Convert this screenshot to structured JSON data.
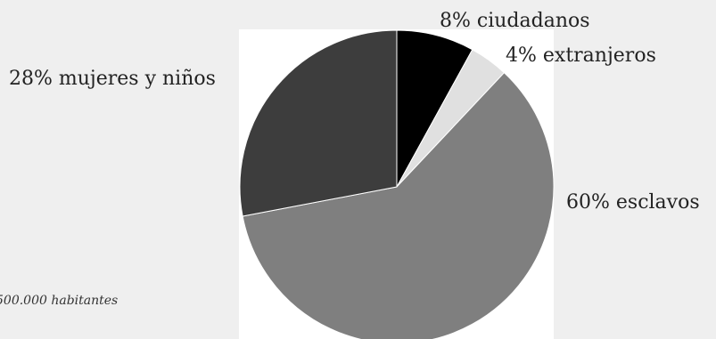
{
  "chart_data": {
    "type": "pie",
    "title": "",
    "slices": [
      {
        "label": "8% ciudadanos",
        "value": 8,
        "color": "#000000"
      },
      {
        "label": "4% extranjeros",
        "value": 4,
        "color": "#e0e0e0"
      },
      {
        "label": "60% esclavos",
        "value": 60,
        "color": "#7f7f7f"
      },
      {
        "label": "28% mujeres y niños",
        "value": 28,
        "color": "#3d3d3d"
      }
    ],
    "start_angle": "12 o'clock, clockwise",
    "legend": "labels placed beside the pie",
    "note": "500.000 habitantes"
  }
}
